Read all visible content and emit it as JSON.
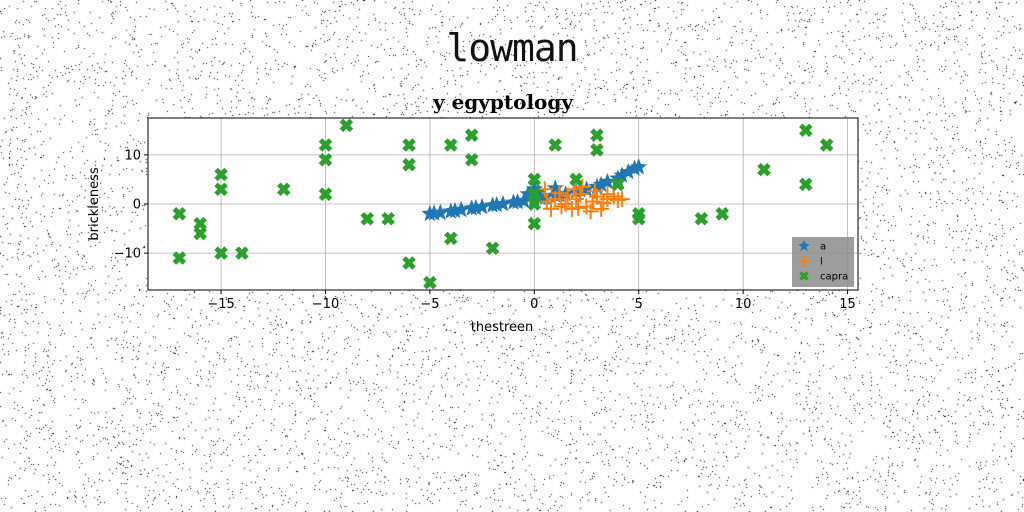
{
  "figure": {
    "suptitle": "lowman"
  },
  "colors": {
    "a": "#1f77b4",
    "l": "#ff7f0e",
    "capra": "#2ca02c",
    "grid": "#b0b0b0",
    "legend_bg": "#8c8c8c"
  },
  "chart_data": {
    "type": "scatter",
    "title": "y egyptology",
    "xlabel": "thestreen",
    "ylabel": "brickleness",
    "xlim": [
      -18.5,
      15.5
    ],
    "ylim": [
      -17.5,
      17.5
    ],
    "xticks": [
      -15,
      -10,
      -5,
      0,
      5,
      10,
      15
    ],
    "yticks": [
      -10,
      0,
      10
    ],
    "grid": true,
    "legend_position": "lower right",
    "series": [
      {
        "name": "a",
        "marker": "star",
        "points": [
          [
            -5,
            -2
          ],
          [
            -4.5,
            -1.8
          ],
          [
            -4,
            -1.5
          ],
          [
            -3.5,
            -1.2
          ],
          [
            -3,
            -0.9
          ],
          [
            -2.5,
            -0.6
          ],
          [
            -2,
            -0.3
          ],
          [
            -1.5,
            0
          ],
          [
            -1,
            0.3
          ],
          [
            -0.5,
            0.6
          ],
          [
            0,
            1
          ],
          [
            0.5,
            1.3
          ],
          [
            1,
            1.7
          ],
          [
            1.5,
            2
          ],
          [
            2,
            2.5
          ],
          [
            2.5,
            3
          ],
          [
            3,
            3.5
          ],
          [
            3.5,
            4.5
          ],
          [
            4,
            5.2
          ],
          [
            4.5,
            6.5
          ],
          [
            5,
            7.5
          ],
          [
            -4.8,
            -1.9
          ],
          [
            -3.8,
            -1.4
          ],
          [
            -2.8,
            -0.8
          ],
          [
            -1.8,
            -0.2
          ],
          [
            -0.8,
            0.4
          ],
          [
            0.3,
            1.2
          ],
          [
            1.2,
            1.8
          ],
          [
            2.2,
            2.8
          ],
          [
            3.2,
            3.9
          ],
          [
            4.2,
            5.8
          ],
          [
            4.8,
            7.2
          ],
          [
            0,
            3
          ],
          [
            0.2,
            2.5
          ],
          [
            -0.3,
            2
          ],
          [
            1,
            3.2
          ]
        ]
      },
      {
        "name": "l",
        "marker": "plus",
        "points": [
          [
            0.5,
            3
          ],
          [
            1,
            1
          ],
          [
            1.2,
            2.2
          ],
          [
            1.5,
            0
          ],
          [
            1.8,
            -1
          ],
          [
            2,
            1
          ],
          [
            2.2,
            2
          ],
          [
            2.5,
            -0.5
          ],
          [
            2.8,
            0.5
          ],
          [
            3,
            1.5
          ],
          [
            3.2,
            -1
          ],
          [
            3.5,
            1
          ],
          [
            3.5,
            2
          ],
          [
            4,
            0.8
          ],
          [
            2.7,
            -1.5
          ],
          [
            1.3,
            -0.5
          ],
          [
            2.3,
            3.5
          ],
          [
            3.8,
            1.5
          ],
          [
            0.8,
            -1
          ],
          [
            2.9,
            2.6
          ],
          [
            1.6,
            1.7
          ],
          [
            3.3,
            0.2
          ],
          [
            2.1,
            -0.8
          ],
          [
            4.2,
            1
          ],
          [
            0.6,
            0.5
          ],
          [
            1.9,
            3
          ]
        ]
      },
      {
        "name": "capra",
        "marker": "x",
        "points": [
          [
            -17,
            -2
          ],
          [
            -17,
            -11
          ],
          [
            -16,
            -4
          ],
          [
            -16,
            -6
          ],
          [
            -15,
            6
          ],
          [
            -15,
            3
          ],
          [
            -15,
            -10
          ],
          [
            -14,
            -10
          ],
          [
            -12,
            3
          ],
          [
            -10,
            12
          ],
          [
            -10,
            9
          ],
          [
            -10,
            2
          ],
          [
            -9,
            16
          ],
          [
            -8,
            -3
          ],
          [
            -7,
            -3
          ],
          [
            -6,
            12
          ],
          [
            -6,
            8
          ],
          [
            -6,
            -12
          ],
          [
            -5,
            -16
          ],
          [
            -4,
            12
          ],
          [
            -4,
            -7
          ],
          [
            -3,
            14
          ],
          [
            -3,
            9
          ],
          [
            -2,
            -9
          ],
          [
            0,
            5
          ],
          [
            0,
            2
          ],
          [
            0,
            0
          ],
          [
            0,
            -4
          ],
          [
            1,
            12
          ],
          [
            2,
            5
          ],
          [
            3,
            14
          ],
          [
            3,
            11
          ],
          [
            4,
            4
          ],
          [
            5,
            -2
          ],
          [
            5,
            -3
          ],
          [
            8,
            -3
          ],
          [
            9,
            -2
          ],
          [
            11,
            7
          ],
          [
            13,
            15
          ],
          [
            13,
            4
          ],
          [
            14,
            12
          ]
        ]
      }
    ]
  }
}
